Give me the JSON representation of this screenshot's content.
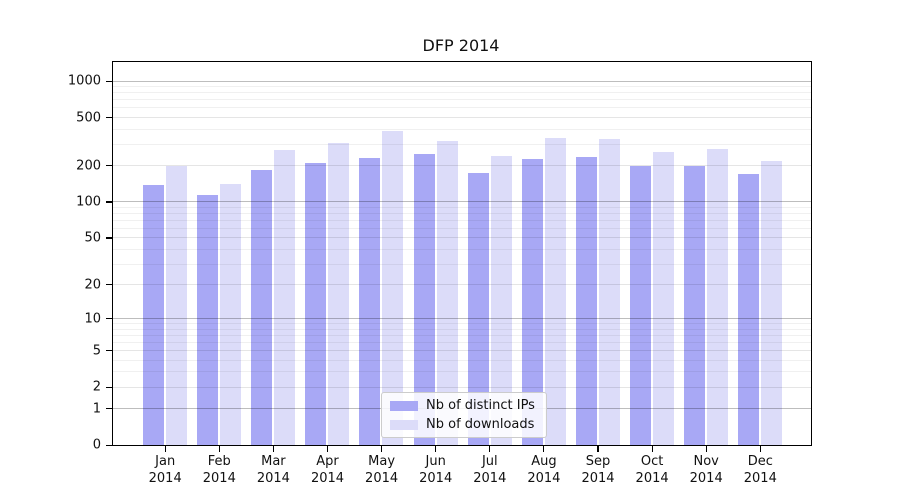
{
  "chart_data": {
    "type": "bar",
    "title": "DFP 2014",
    "categories": [
      "Jan",
      "Feb",
      "Mar",
      "Apr",
      "May",
      "Jun",
      "Jul",
      "Aug",
      "Sep",
      "Oct",
      "Nov",
      "Dec"
    ],
    "year_label": "2014",
    "series": [
      {
        "name": "Nb of distinct IPs",
        "color": "#a8a8f5",
        "values": [
          138,
          113,
          183,
          209,
          230,
          248,
          173,
          226,
          235,
          198,
          200,
          172
        ]
      },
      {
        "name": "Nb of downloads",
        "color": "#dcdcf9",
        "values": [
          197,
          142,
          267,
          305,
          385,
          318,
          240,
          338,
          334,
          258,
          276,
          218
        ]
      }
    ],
    "yscale": "log1p",
    "yticks": [
      0,
      1,
      2,
      5,
      10,
      20,
      50,
      100,
      200,
      500,
      1000
    ],
    "ylim": [
      0,
      1435
    ],
    "grid": "both",
    "grid_over_bars": true,
    "legend_position": "lower center",
    "colors": {
      "major_grid": "rgba(0,0,0,0.26)",
      "mid_grid": "rgba(0,0,0,0.10)",
      "minor_grid": "rgba(0,0,0,0.06)",
      "axis": "#000000",
      "background": "#ffffff"
    }
  }
}
